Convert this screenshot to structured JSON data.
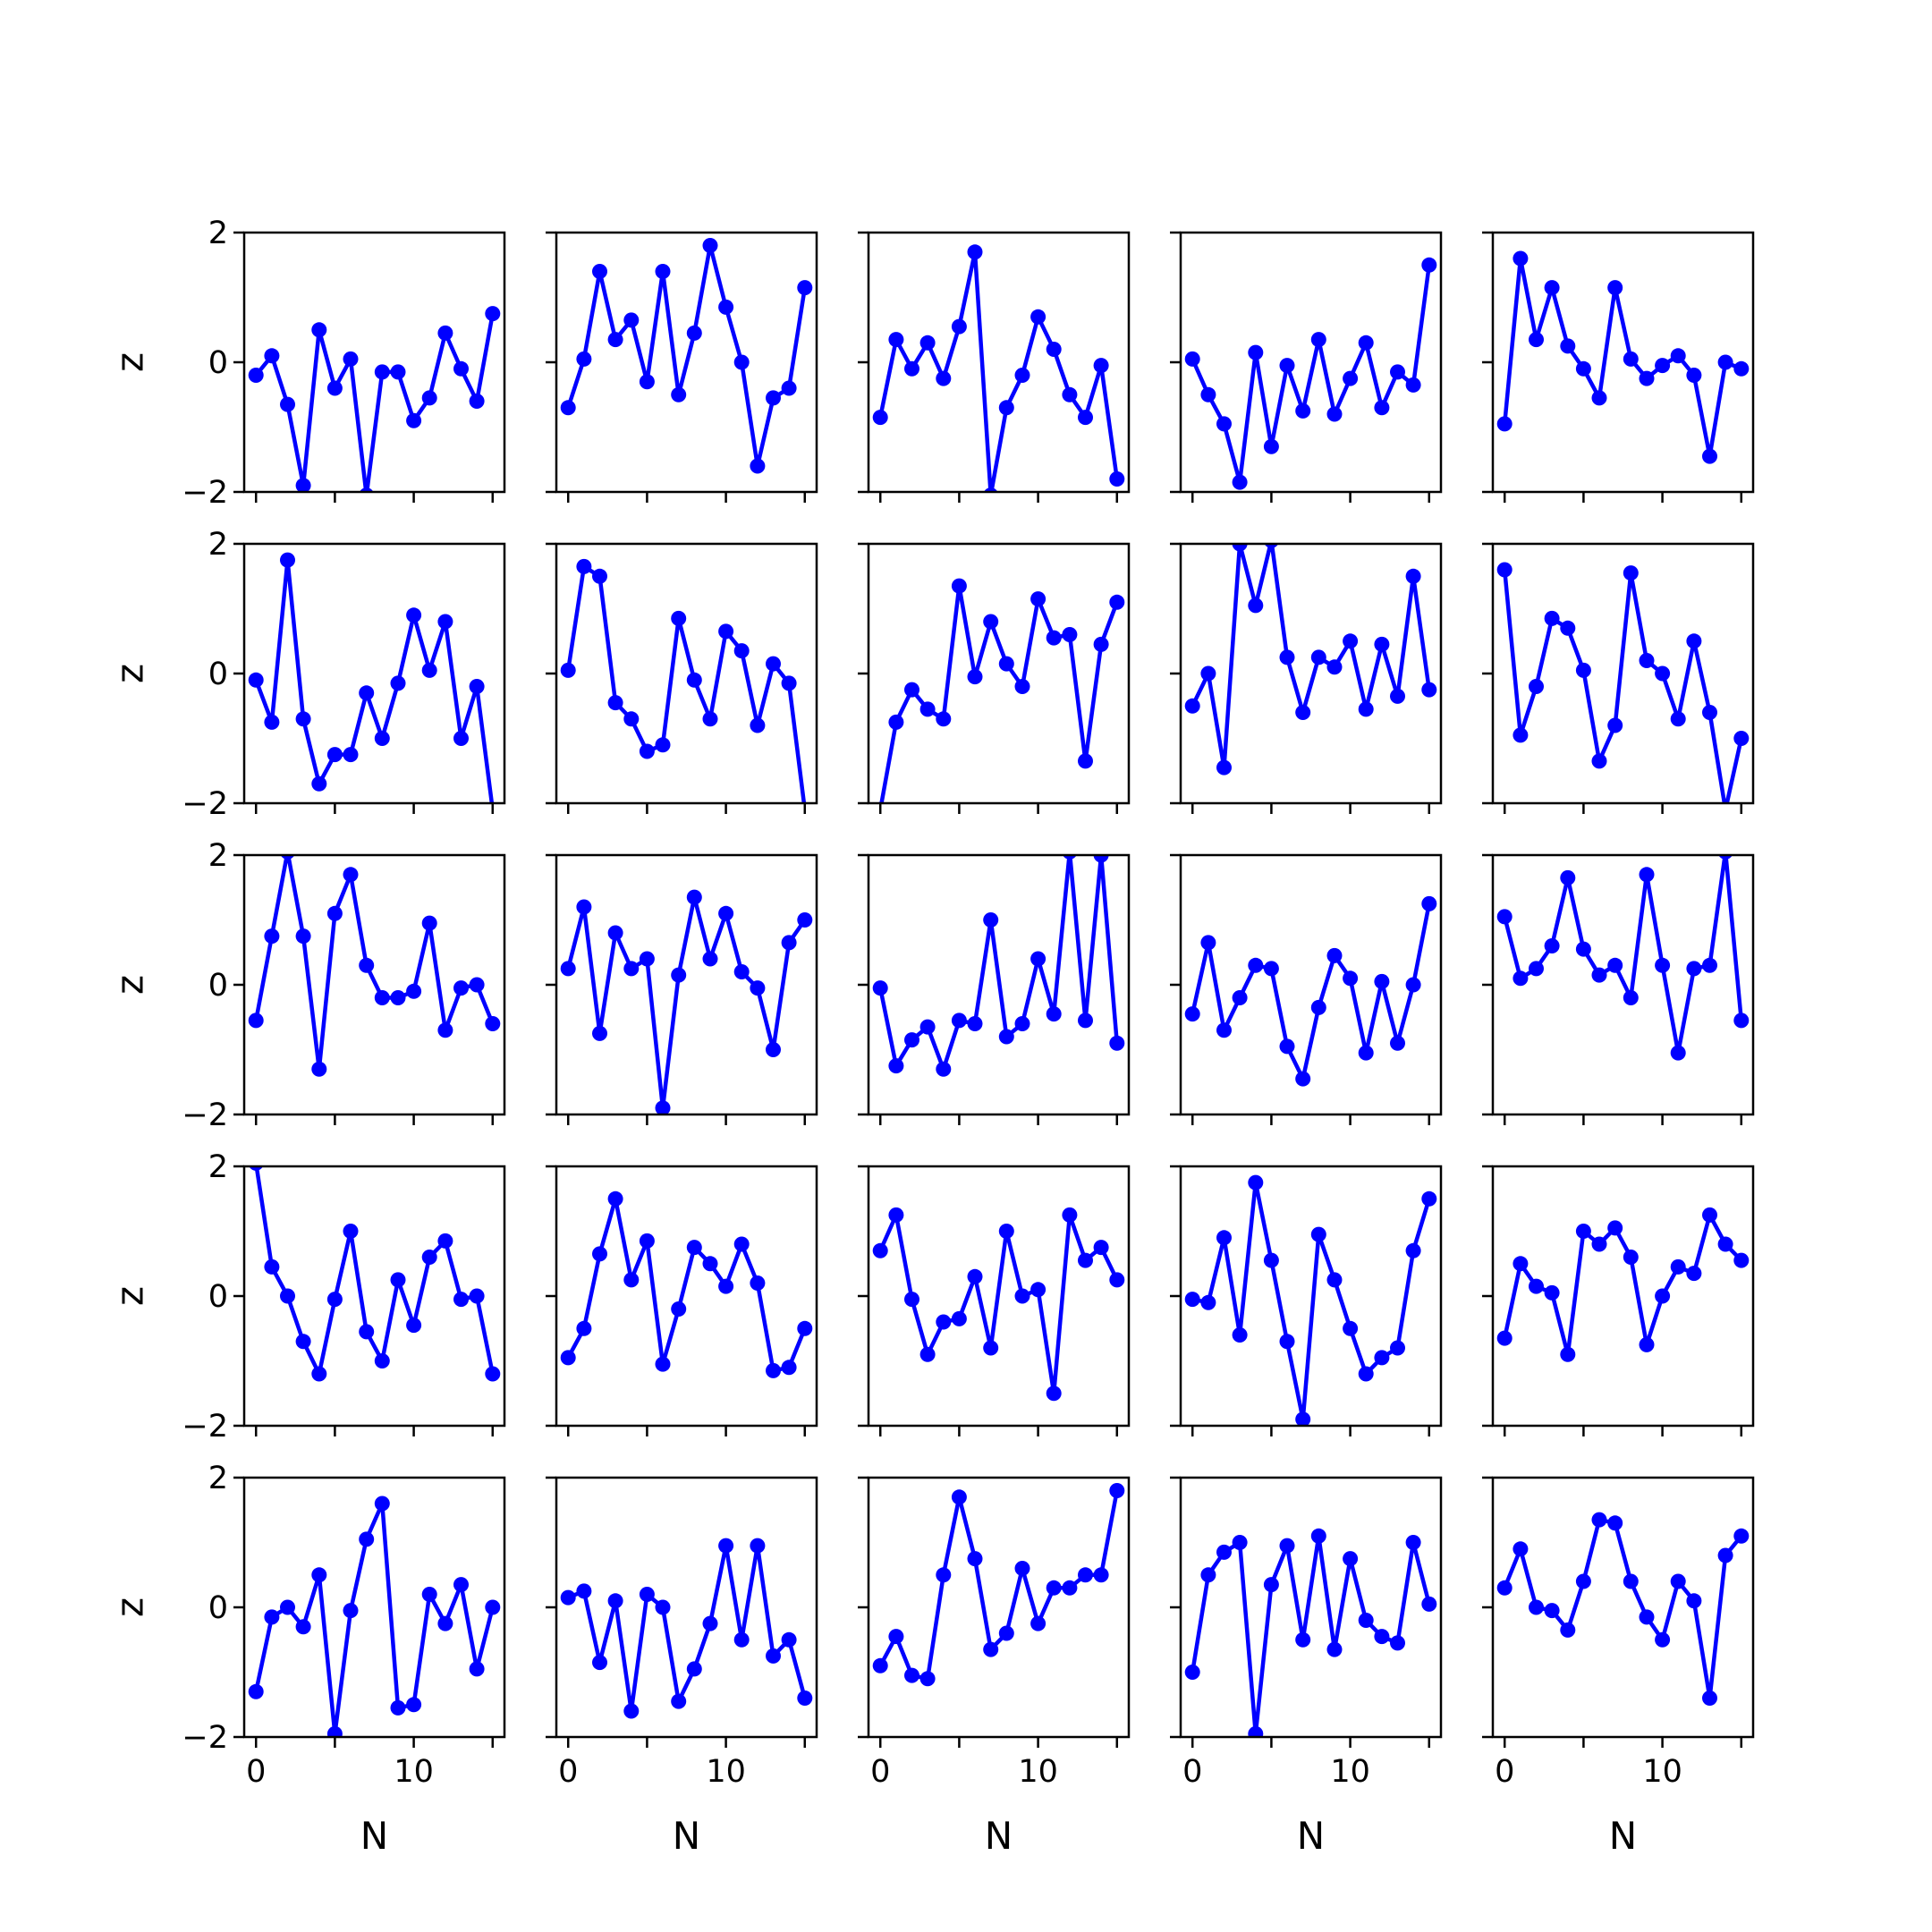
{
  "chart_data": {
    "type": "line",
    "layout": {
      "rows": 5,
      "cols": 5
    },
    "xlabel": "N",
    "ylabel": "z",
    "xlim": [
      -0.75,
      15.75
    ],
    "ylim": [
      -2,
      2
    ],
    "xticks": [
      0,
      5,
      10,
      15
    ],
    "xtick_labels": [
      "0",
      "",
      "10",
      ""
    ],
    "yticks": [
      -2,
      0,
      2
    ],
    "ytick_labels": [
      "−2",
      "0",
      "2"
    ],
    "line_color": "#0000ff",
    "marker": "circle",
    "grid": false,
    "x": [
      0,
      1,
      2,
      3,
      4,
      5,
      6,
      7,
      8,
      9,
      10,
      11,
      12,
      13,
      14,
      15
    ],
    "panels": [
      {
        "values": [
          -0.2,
          0.1,
          -0.65,
          -1.9,
          0.5,
          -0.4,
          0.05,
          -2.05,
          -0.15,
          -0.15,
          -0.9,
          -0.55,
          0.45,
          -0.1,
          -0.6,
          0.75
        ]
      },
      {
        "values": [
          -0.7,
          0.05,
          1.4,
          0.35,
          0.65,
          -0.3,
          1.4,
          -0.5,
          0.45,
          1.8,
          0.85,
          0.0,
          -1.6,
          -0.55,
          -0.4,
          1.15
        ]
      },
      {
        "values": [
          -0.85,
          0.35,
          -0.1,
          0.3,
          -0.25,
          0.55,
          1.7,
          -2.05,
          -0.7,
          -0.2,
          0.7,
          0.2,
          -0.5,
          -0.85,
          -0.05,
          -1.8
        ]
      },
      {
        "values": [
          0.05,
          -0.5,
          -0.95,
          -1.85,
          0.15,
          -1.3,
          -0.05,
          -0.75,
          0.35,
          -0.8,
          -0.25,
          0.3,
          -0.7,
          -0.15,
          -0.35,
          1.5
        ]
      },
      {
        "values": [
          -0.95,
          1.6,
          0.35,
          1.15,
          0.25,
          -0.1,
          -0.55,
          1.15,
          0.05,
          -0.25,
          -0.05,
          0.1,
          -0.2,
          -1.45,
          0.0,
          -0.1
        ]
      },
      {
        "values": [
          -0.1,
          -0.75,
          1.75,
          -0.7,
          -1.7,
          -1.25,
          -1.25,
          -0.3,
          -1.0,
          -0.15,
          0.9,
          0.05,
          0.8,
          -1.0,
          -0.2,
          -2.1
        ]
      },
      {
        "values": [
          0.05,
          1.65,
          1.5,
          -0.45,
          -0.7,
          -1.2,
          -1.1,
          0.85,
          -0.1,
          -0.7,
          0.65,
          0.35,
          -0.8,
          0.15,
          -0.15,
          -2.1
        ]
      },
      {
        "values": [
          -2.1,
          -0.75,
          -0.25,
          -0.55,
          -0.7,
          1.35,
          -0.05,
          0.8,
          0.15,
          -0.2,
          1.15,
          0.55,
          0.6,
          -1.35,
          0.45,
          1.1
        ]
      },
      {
        "values": [
          -0.5,
          0.0,
          -1.45,
          2.0,
          1.05,
          2.05,
          0.25,
          -0.6,
          0.25,
          0.1,
          0.5,
          -0.55,
          0.45,
          -0.35,
          1.5,
          -0.25
        ]
      },
      {
        "values": [
          1.6,
          -0.95,
          -0.2,
          0.85,
          0.7,
          0.05,
          -1.35,
          -0.8,
          1.55,
          0.2,
          0.0,
          -0.7,
          0.5,
          -0.6,
          -2.1,
          -1.0
        ]
      },
      {
        "values": [
          -0.55,
          0.75,
          2.05,
          0.75,
          -1.3,
          1.1,
          1.7,
          0.3,
          -0.2,
          -0.2,
          -0.1,
          0.95,
          -0.7,
          -0.05,
          0.0,
          -0.6
        ]
      },
      {
        "values": [
          0.25,
          1.2,
          -0.75,
          0.8,
          0.25,
          0.4,
          -1.9,
          0.15,
          1.35,
          0.4,
          1.1,
          0.2,
          -0.05,
          -1.0,
          0.65,
          1.0
        ]
      },
      {
        "values": [
          -0.05,
          -1.25,
          -0.85,
          -0.65,
          -1.3,
          -0.55,
          -0.6,
          1.0,
          -0.8,
          -0.6,
          0.4,
          -0.45,
          2.05,
          -0.55,
          2.0,
          -0.9
        ]
      },
      {
        "values": [
          -0.45,
          0.65,
          -0.7,
          -0.2,
          0.3,
          0.25,
          -0.95,
          -1.45,
          -0.35,
          0.45,
          0.1,
          -1.05,
          0.05,
          -0.9,
          0.0,
          1.25
        ]
      },
      {
        "values": [
          1.05,
          0.1,
          0.25,
          0.6,
          1.65,
          0.55,
          0.15,
          0.3,
          -0.2,
          1.7,
          0.3,
          -1.05,
          0.25,
          0.3,
          2.05,
          -0.55
        ]
      },
      {
        "values": [
          2.05,
          0.45,
          0.0,
          -0.7,
          -1.2,
          -0.05,
          1.0,
          -0.55,
          -1.0,
          0.25,
          -0.45,
          0.6,
          0.85,
          -0.05,
          0.0,
          -1.2
        ]
      },
      {
        "values": [
          -0.95,
          -0.5,
          0.65,
          1.5,
          0.25,
          0.85,
          -1.05,
          -0.2,
          0.75,
          0.5,
          0.15,
          0.8,
          0.2,
          -1.15,
          -1.1,
          -0.5
        ]
      },
      {
        "values": [
          0.7,
          1.25,
          -0.05,
          -0.9,
          -0.4,
          -0.35,
          0.3,
          -0.8,
          1.0,
          0.0,
          0.1,
          -1.5,
          1.25,
          0.55,
          0.75,
          0.25
        ]
      },
      {
        "values": [
          -0.05,
          -0.1,
          0.9,
          -0.6,
          1.75,
          0.55,
          -0.7,
          -1.9,
          0.95,
          0.25,
          -0.5,
          -1.2,
          -0.95,
          -0.8,
          0.7,
          1.5
        ]
      },
      {
        "values": [
          -0.65,
          0.5,
          0.15,
          0.05,
          -0.9,
          1.0,
          0.8,
          1.05,
          0.6,
          -0.75,
          0.0,
          0.45,
          0.35,
          1.25,
          0.8,
          0.55
        ]
      },
      {
        "values": [
          -1.3,
          -0.15,
          0.0,
          -0.3,
          0.5,
          -1.95,
          -0.05,
          1.05,
          1.6,
          -1.55,
          -1.5,
          0.2,
          -0.25,
          0.35,
          -0.95,
          0.0
        ]
      },
      {
        "values": [
          0.15,
          0.25,
          -0.85,
          0.1,
          -1.6,
          0.2,
          0.0,
          -1.45,
          -0.95,
          -0.25,
          0.95,
          -0.5,
          0.95,
          -0.75,
          -0.5,
          -1.4
        ]
      },
      {
        "values": [
          -0.9,
          -0.45,
          -1.05,
          -1.1,
          0.5,
          1.7,
          0.75,
          -0.65,
          -0.4,
          0.6,
          -0.25,
          0.3,
          0.3,
          0.5,
          0.5,
          1.8
        ]
      },
      {
        "values": [
          -1.0,
          0.5,
          0.85,
          1.0,
          -1.95,
          0.35,
          0.95,
          -0.5,
          1.1,
          -0.65,
          0.75,
          -0.2,
          -0.45,
          -0.55,
          1.0,
          0.05
        ]
      },
      {
        "values": [
          0.3,
          0.9,
          0.0,
          -0.05,
          -0.35,
          0.4,
          1.35,
          1.3,
          0.4,
          -0.15,
          -0.5,
          0.4,
          0.1,
          -1.4,
          0.8,
          1.1
        ]
      }
    ]
  }
}
